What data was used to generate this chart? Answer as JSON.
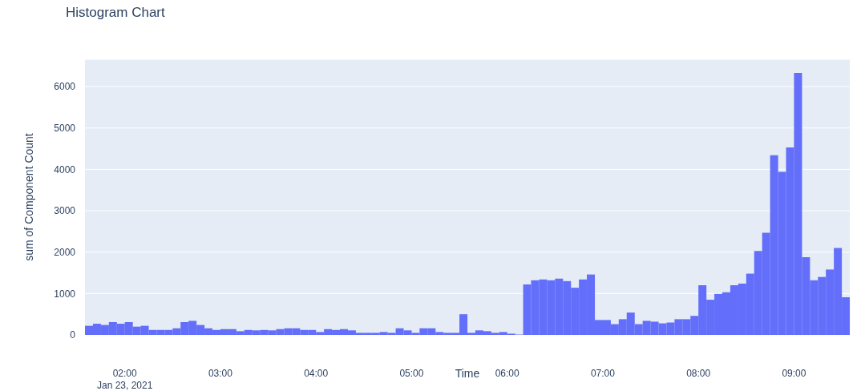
{
  "chart_data": {
    "type": "histogram",
    "title": "Histogram Chart",
    "xlabel": "Time",
    "ylabel": "sum of Component Count",
    "color": "#636efa",
    "bins": [
      "2021-01-23T01:35",
      "2021-01-23T01:40",
      "2021-01-23T01:45",
      "2021-01-23T01:50",
      "2021-01-23T01:55",
      "2021-01-23T02:00",
      "2021-01-23T02:05",
      "2021-01-23T02:10",
      "2021-01-23T02:15",
      "2021-01-23T02:20",
      "2021-01-23T02:25",
      "2021-01-23T02:30",
      "2021-01-23T02:35",
      "2021-01-23T02:40",
      "2021-01-23T02:45",
      "2021-01-23T02:50",
      "2021-01-23T02:55",
      "2021-01-23T03:00",
      "2021-01-23T03:05",
      "2021-01-23T03:10",
      "2021-01-23T03:15",
      "2021-01-23T03:20",
      "2021-01-23T03:25",
      "2021-01-23T03:30",
      "2021-01-23T03:35",
      "2021-01-23T03:40",
      "2021-01-23T03:45",
      "2021-01-23T03:50",
      "2021-01-23T03:55",
      "2021-01-23T04:00",
      "2021-01-23T04:05",
      "2021-01-23T04:10",
      "2021-01-23T04:15",
      "2021-01-23T04:20",
      "2021-01-23T04:25",
      "2021-01-23T04:30",
      "2021-01-23T04:35",
      "2021-01-23T04:40",
      "2021-01-23T04:45",
      "2021-01-23T04:50",
      "2021-01-23T04:55",
      "2021-01-23T05:00",
      "2021-01-23T05:05",
      "2021-01-23T05:10",
      "2021-01-23T05:15",
      "2021-01-23T05:20",
      "2021-01-23T05:25",
      "2021-01-23T05:30",
      "2021-01-23T05:35",
      "2021-01-23T05:40",
      "2021-01-23T05:45",
      "2021-01-23T05:50",
      "2021-01-23T05:55",
      "2021-01-23T06:00",
      "2021-01-23T06:05",
      "2021-01-23T06:10",
      "2021-01-23T06:15",
      "2021-01-23T06:20",
      "2021-01-23T06:25",
      "2021-01-23T06:30",
      "2021-01-23T06:35",
      "2021-01-23T06:40",
      "2021-01-23T06:45",
      "2021-01-23T06:50",
      "2021-01-23T06:55",
      "2021-01-23T07:00",
      "2021-01-23T07:05",
      "2021-01-23T07:10",
      "2021-01-23T07:15",
      "2021-01-23T07:20",
      "2021-01-23T07:25",
      "2021-01-23T07:30",
      "2021-01-23T07:35",
      "2021-01-23T07:40",
      "2021-01-23T07:45",
      "2021-01-23T07:50",
      "2021-01-23T07:55",
      "2021-01-23T08:00",
      "2021-01-23T08:05",
      "2021-01-23T08:10",
      "2021-01-23T08:15",
      "2021-01-23T08:20",
      "2021-01-23T08:25",
      "2021-01-23T08:30",
      "2021-01-23T08:35",
      "2021-01-23T08:40",
      "2021-01-23T08:45",
      "2021-01-23T08:50",
      "2021-01-23T08:55",
      "2021-01-23T09:00",
      "2021-01-23T09:05",
      "2021-01-23T09:10",
      "2021-01-23T09:15",
      "2021-01-23T09:20",
      "2021-01-23T09:25",
      "2021-01-23T09:30",
      "2021-01-23T09:35"
    ],
    "values": [
      220,
      270,
      240,
      310,
      270,
      310,
      200,
      220,
      120,
      120,
      120,
      160,
      310,
      340,
      240,
      160,
      120,
      140,
      140,
      90,
      120,
      110,
      120,
      110,
      140,
      160,
      160,
      120,
      120,
      70,
      140,
      120,
      140,
      110,
      50,
      50,
      50,
      70,
      50,
      160,
      110,
      50,
      160,
      160,
      70,
      50,
      50,
      500,
      50,
      110,
      90,
      50,
      70,
      30,
      10,
      1220,
      1320,
      1340,
      1320,
      1360,
      1300,
      1140,
      1340,
      1460,
      360,
      360,
      260,
      380,
      540,
      260,
      340,
      320,
      280,
      300,
      380,
      380,
      460,
      1200,
      850,
      990,
      1030,
      1200,
      1240,
      1480,
      2030,
      2470,
      4340,
      3940,
      4530,
      6330,
      1880,
      1320,
      1400,
      1580,
      2100,
      910
    ],
    "xlim": [
      "2021-01-23T01:35",
      "2021-01-23T09:35"
    ],
    "xticks": [
      {
        "value": "2021-01-23T02:00",
        "label": "02:00\nJan 23, 2021"
      },
      {
        "value": "2021-01-23T03:00",
        "label": "03:00"
      },
      {
        "value": "2021-01-23T04:00",
        "label": "04:00"
      },
      {
        "value": "2021-01-23T05:00",
        "label": "05:00"
      },
      {
        "value": "2021-01-23T06:00",
        "label": "06:00"
      },
      {
        "value": "2021-01-23T07:00",
        "label": "07:00"
      },
      {
        "value": "2021-01-23T08:00",
        "label": "08:00"
      },
      {
        "value": "2021-01-23T09:00",
        "label": "09:00"
      }
    ],
    "ylim": [
      0,
      6660
    ],
    "yticks": [
      0,
      1000,
      2000,
      3000,
      4000,
      5000,
      6000
    ],
    "grid": "y"
  }
}
